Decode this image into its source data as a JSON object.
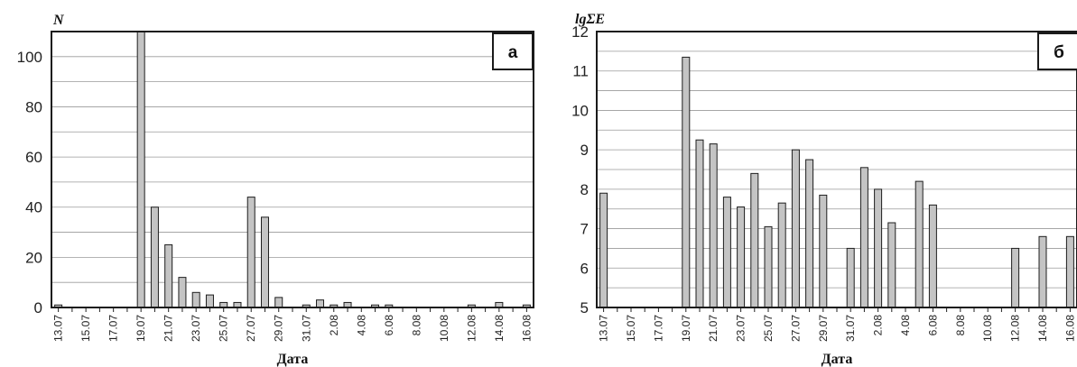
{
  "chart_data": [
    {
      "type": "bar",
      "ylabel": "N",
      "xlabel": "Дата",
      "panel_label": "а",
      "ylim": [
        0,
        110
      ],
      "yticks": [
        0,
        20,
        40,
        60,
        80,
        100
      ],
      "x_tick_labels": [
        "13.07",
        "15.07",
        "17.07",
        "19.07",
        "21.07",
        "23.07",
        "25.07",
        "27.07",
        "29.07",
        "31.07",
        "2.08",
        "4.08",
        "6.08",
        "8.08",
        "10.08",
        "12.08",
        "14.08",
        "16.08"
      ],
      "grid": "horizontal",
      "categories": [
        "13.07",
        "14.07",
        "15.07",
        "16.07",
        "17.07",
        "18.07",
        "19.07",
        "20.07",
        "21.07",
        "22.07",
        "23.07",
        "24.07",
        "25.07",
        "26.07",
        "27.07",
        "28.07",
        "29.07",
        "30.07",
        "31.07",
        "1.08",
        "2.08",
        "3.08",
        "4.08",
        "5.08",
        "6.08",
        "7.08",
        "8.08",
        "9.08",
        "10.08",
        "11.08",
        "12.08",
        "13.08",
        "14.08",
        "15.08",
        "16.08"
      ],
      "values": [
        1,
        0,
        0,
        0,
        0,
        0,
        110,
        40,
        25,
        12,
        6,
        5,
        2,
        2,
        44,
        36,
        4,
        0,
        1,
        3,
        1,
        2,
        0,
        1,
        1,
        0,
        0,
        0,
        0,
        0,
        1,
        0,
        2,
        0,
        1
      ]
    },
    {
      "type": "bar",
      "ylabel": "lgΣE",
      "xlabel": "Дата",
      "panel_label": "б",
      "ylim": [
        5,
        12
      ],
      "yticks": [
        5,
        6,
        7,
        8,
        9,
        10,
        11,
        12
      ],
      "x_tick_labels": [
        "13.07",
        "15.07",
        "17.07",
        "19.07",
        "21.07",
        "23.07",
        "25.07",
        "27.07",
        "29.07",
        "31.07",
        "2.08",
        "4.08",
        "6.08",
        "8.08",
        "10.08",
        "12.08",
        "14.08",
        "16.08"
      ],
      "grid": "horizontal",
      "categories": [
        "13.07",
        "14.07",
        "15.07",
        "16.07",
        "17.07",
        "18.07",
        "19.07",
        "20.07",
        "21.07",
        "22.07",
        "23.07",
        "24.07",
        "25.07",
        "26.07",
        "27.07",
        "28.07",
        "29.07",
        "30.07",
        "31.07",
        "1.08",
        "2.08",
        "3.08",
        "4.08",
        "5.08",
        "6.08",
        "7.08",
        "8.08",
        "9.08",
        "10.08",
        "11.08",
        "12.08",
        "13.08",
        "14.08",
        "15.08",
        "16.08"
      ],
      "values": [
        7.9,
        null,
        null,
        null,
        null,
        null,
        11.35,
        9.25,
        9.15,
        7.8,
        7.55,
        8.4,
        7.05,
        7.65,
        9.0,
        8.75,
        7.85,
        null,
        6.5,
        8.55,
        8.0,
        7.15,
        null,
        8.2,
        7.6,
        null,
        null,
        null,
        null,
        null,
        6.5,
        null,
        6.8,
        null,
        6.8
      ]
    }
  ]
}
